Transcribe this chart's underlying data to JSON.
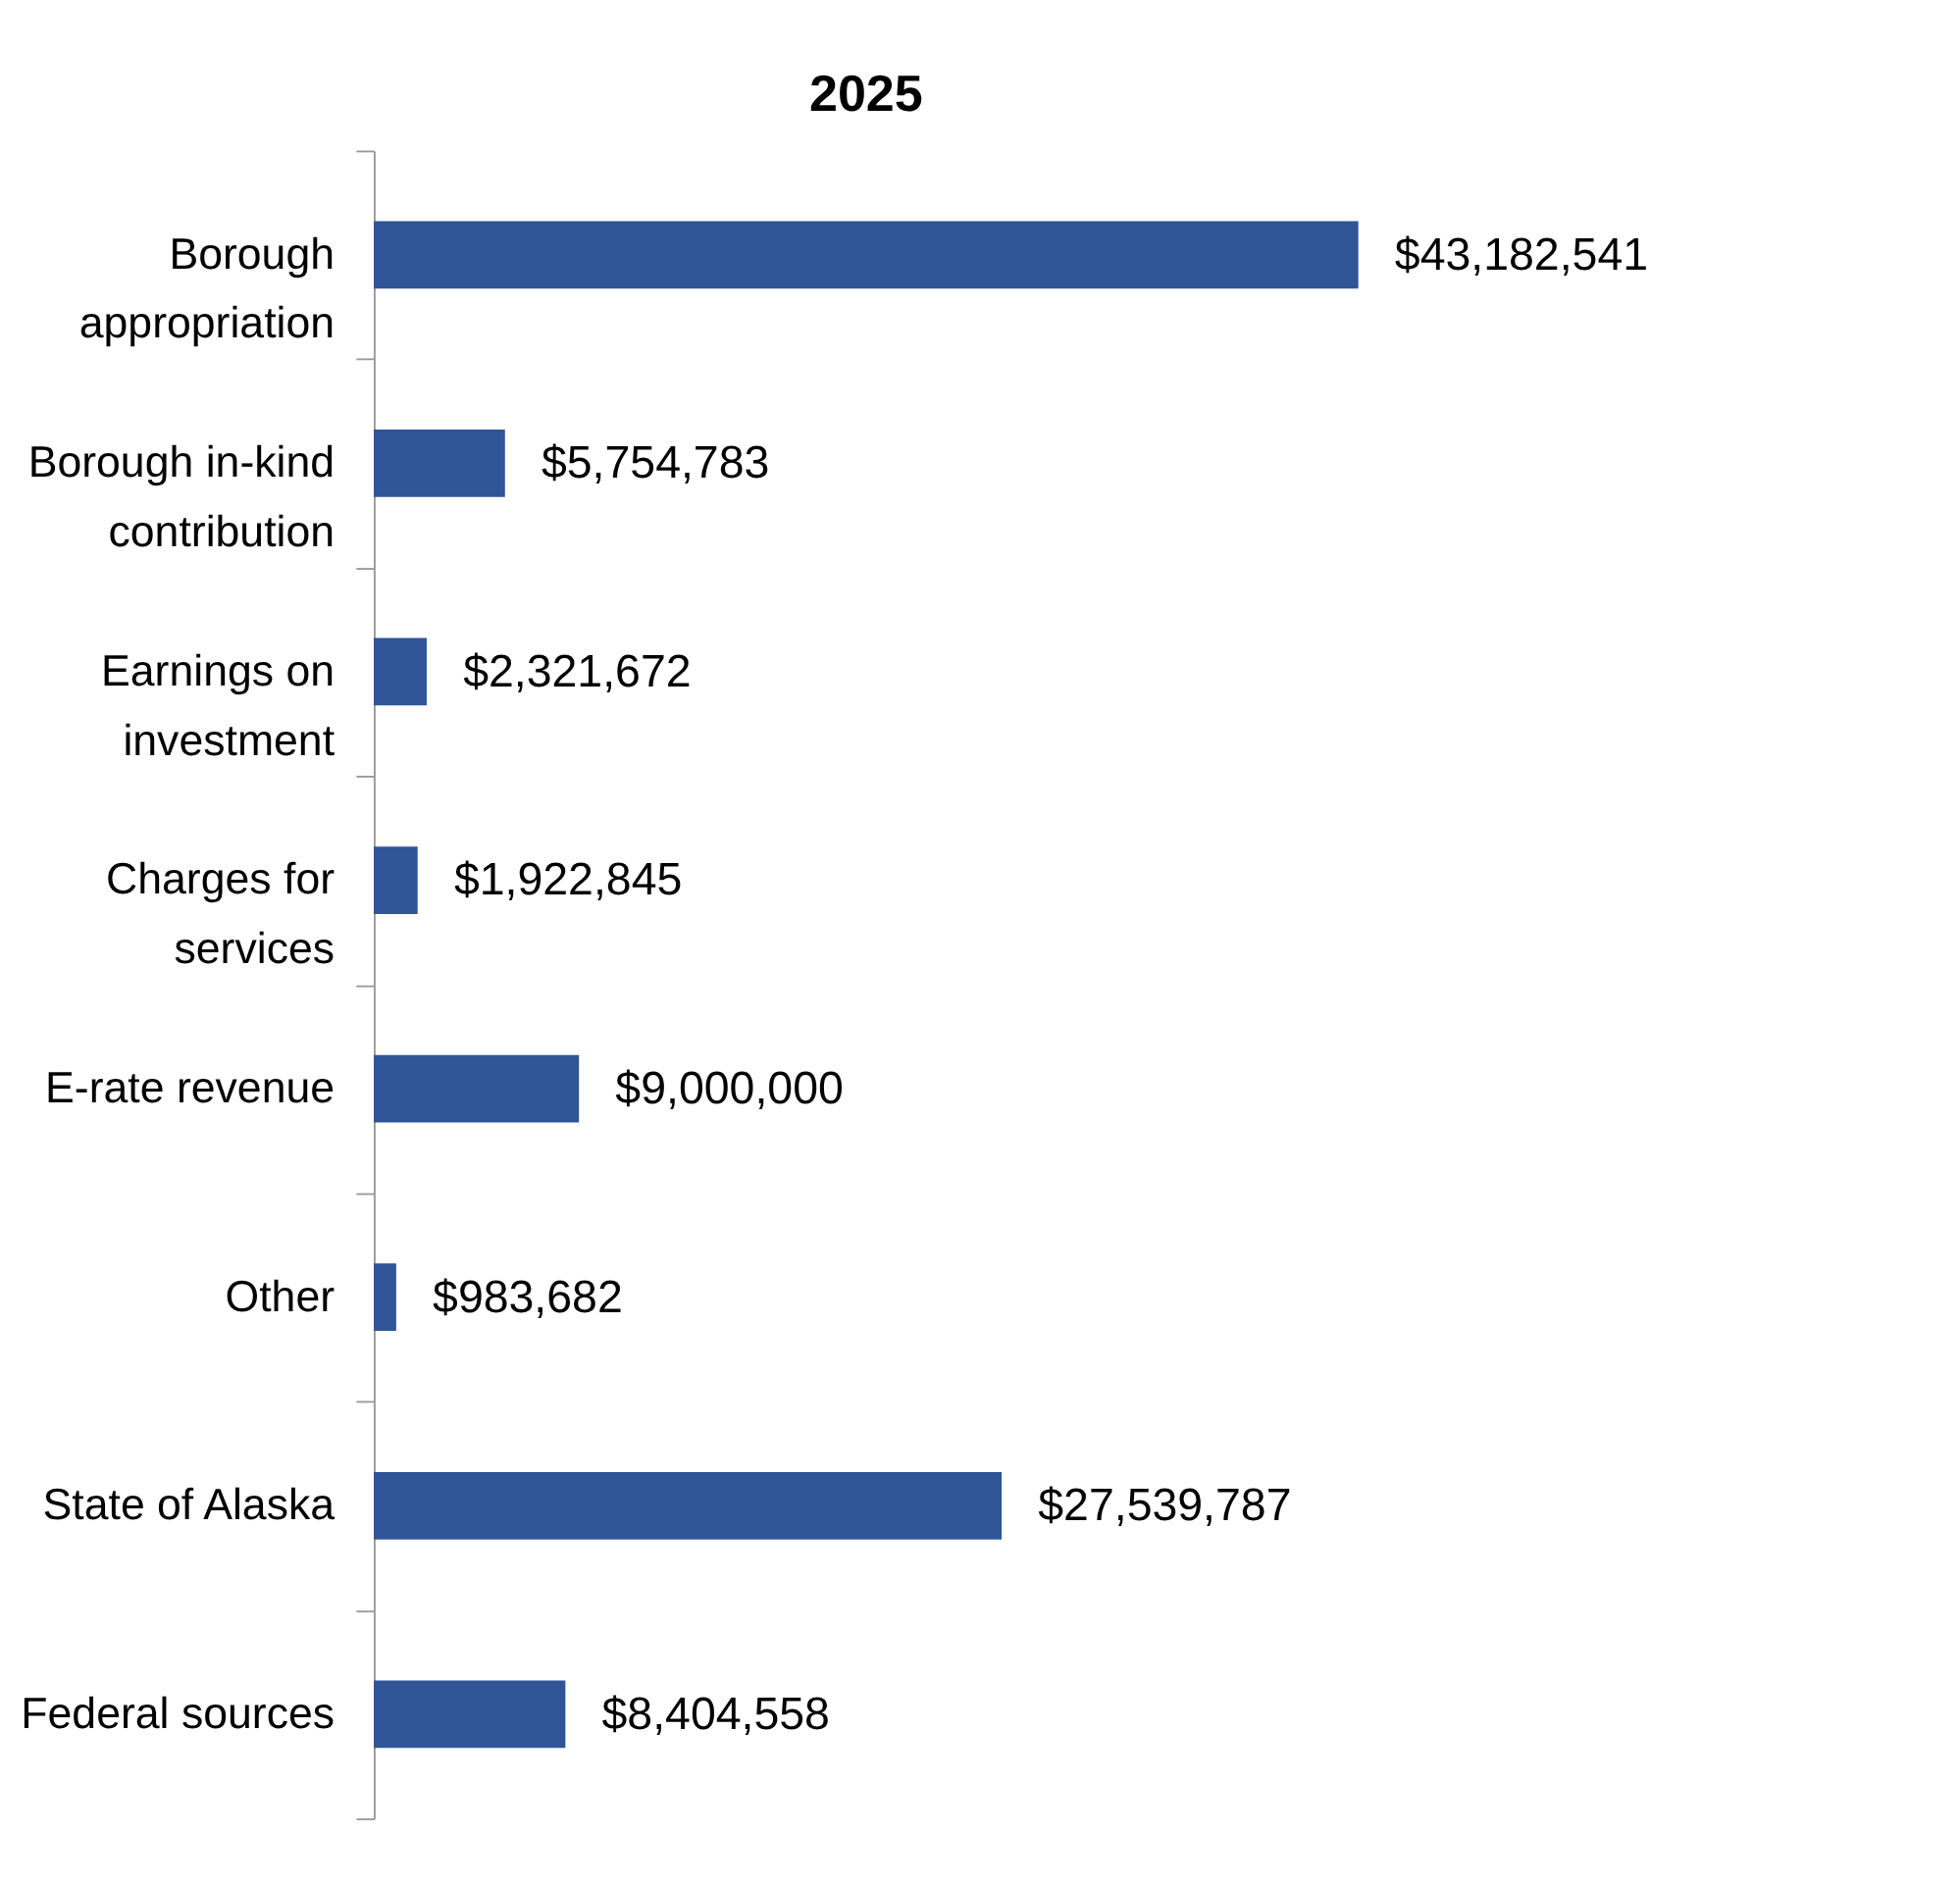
{
  "chart_data": {
    "type": "bar",
    "orientation": "horizontal",
    "title": "2025",
    "categories": [
      "Borough appropriation",
      "Borough in-kind contribution",
      "Earnings on investment",
      "Charges for services",
      "E-rate revenue",
      "Other",
      "State of Alaska",
      "Federal sources"
    ],
    "values": [
      43182541,
      5754783,
      2321672,
      1922845,
      9000000,
      983682,
      27539787,
      8404558
    ],
    "value_labels": [
      "$43,182,541",
      "$5,754,783",
      "$2,321,672",
      "$1,922,845",
      "$9,000,000",
      "$983,682",
      "$27,539,787",
      "$8,404,558"
    ],
    "color": "#2f5597",
    "grid": false
  }
}
